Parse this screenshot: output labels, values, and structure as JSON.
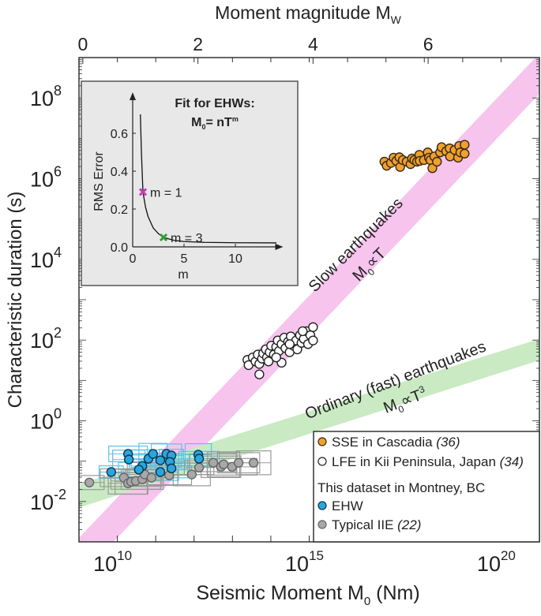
{
  "chart_data": {
    "type": "scatter",
    "title": "",
    "x_scale": "log10",
    "y_scale": "log10",
    "xlabel": {
      "main": "Seismic Moment M",
      "sub": "0",
      "tail": " (Nm)"
    },
    "ylabel": "Characteristic duration (s)",
    "top_xlabel": {
      "main": "Moment magnitude M",
      "sub": "W"
    },
    "xlim_log10": [
      9,
      21
    ],
    "ylim_log10": [
      -3,
      9
    ],
    "x_ticks": [
      {
        "value": 10,
        "base": "10",
        "exp": "10"
      },
      {
        "value": 15,
        "base": "10",
        "exp": "15"
      },
      {
        "value": 20,
        "base": "10",
        "exp": "20"
      }
    ],
    "y_ticks": [
      {
        "value": -2,
        "base": "10",
        "exp": "-2"
      },
      {
        "value": 0,
        "base": "10",
        "exp": "0"
      },
      {
        "value": 2,
        "base": "10",
        "exp": "2"
      },
      {
        "value": 4,
        "base": "10",
        "exp": "4"
      },
      {
        "value": 6,
        "base": "10",
        "exp": "6"
      },
      {
        "value": 8,
        "base": "10",
        "exp": "8"
      }
    ],
    "top_ticks": [
      {
        "value": 0,
        "label": "0"
      },
      {
        "value": 2,
        "label": "2"
      },
      {
        "value": 4,
        "label": "4"
      },
      {
        "value": 6,
        "label": "6"
      }
    ],
    "top_axis_relation": {
      "log10_M0_per_Mw": 1.5,
      "log10_M0_offset": 9.1
    },
    "bands": [
      {
        "name": "slow",
        "label": "Slow earthquakes",
        "relation": {
          "main": "M",
          "sub": "0",
          "prop": "∝",
          "T": "T",
          "exp": ""
        },
        "color": "#f7c4ee",
        "polygon_log10": [
          [
            8.9,
            -3
          ],
          [
            21,
            9.1
          ],
          [
            21,
            8.1
          ],
          [
            9.9,
            -3
          ]
        ]
      },
      {
        "name": "ordinary",
        "label": "Ordinary (fast) earthquakes",
        "relation": {
          "main": "M",
          "sub": "0",
          "prop": "∝",
          "T": "T",
          "exp": "3"
        },
        "color": "#c9eac3",
        "polygon_log10": [
          [
            9,
            -1.57
          ],
          [
            21,
            2.03
          ],
          [
            21,
            1.5
          ],
          [
            9,
            -2.15
          ]
        ]
      }
    ],
    "series": [
      {
        "name": "SSE in Cascadia",
        "ref": "(36)",
        "color": "#f0a030",
        "edge": "#3a2a10",
        "points_log10": [
          [
            16.96,
            6.42
          ],
          [
            17.02,
            6.32
          ],
          [
            17.13,
            6.39
          ],
          [
            17.2,
            6.52
          ],
          [
            17.27,
            6.44
          ],
          [
            17.35,
            6.53
          ],
          [
            17.37,
            6.29
          ],
          [
            17.44,
            6.46
          ],
          [
            17.54,
            6.42
          ],
          [
            17.64,
            6.36
          ],
          [
            17.68,
            6.5
          ],
          [
            17.74,
            6.46
          ],
          [
            17.81,
            6.42
          ],
          [
            17.87,
            6.59
          ],
          [
            17.88,
            6.44
          ],
          [
            17.99,
            6.46
          ],
          [
            18.09,
            6.65
          ],
          [
            18.12,
            6.52
          ],
          [
            18.16,
            6.46
          ],
          [
            18.21,
            6.26
          ],
          [
            18.26,
            6.55
          ],
          [
            18.33,
            6.42
          ],
          [
            18.41,
            6.65
          ],
          [
            18.45,
            6.78
          ],
          [
            18.57,
            6.68
          ],
          [
            18.66,
            6.75
          ],
          [
            18.67,
            6.55
          ],
          [
            18.79,
            6.71
          ],
          [
            18.88,
            6.52
          ],
          [
            18.91,
            6.81
          ],
          [
            18.94,
            6.65
          ],
          [
            19.05,
            6.84
          ],
          [
            19.05,
            6.62
          ]
        ]
      },
      {
        "name": "LFE in Kii Peninsula, Japan",
        "ref": "(34)",
        "color": "#ffffff",
        "edge": "#222222",
        "points_log10": [
          [
            13.39,
            1.51
          ],
          [
            13.42,
            1.38
          ],
          [
            13.53,
            1.57
          ],
          [
            13.6,
            1.47
          ],
          [
            13.66,
            1.64
          ],
          [
            13.7,
            1.41
          ],
          [
            13.77,
            1.54
          ],
          [
            13.8,
            1.67
          ],
          [
            13.87,
            1.77
          ],
          [
            13.9,
            1.57
          ],
          [
            13.97,
            1.7
          ],
          [
            14.01,
            1.86
          ],
          [
            14.08,
            1.64
          ],
          [
            14.14,
            1.83
          ],
          [
            14.18,
            1.99
          ],
          [
            14.21,
            1.73
          ],
          [
            14.28,
            1.44
          ],
          [
            14.28,
            1.9
          ],
          [
            14.35,
            2.06
          ],
          [
            14.38,
            1.8
          ],
          [
            14.45,
            1.96
          ],
          [
            14.49,
            1.7
          ],
          [
            14.52,
            2.09
          ],
          [
            14.59,
            1.86
          ],
          [
            14.66,
            1.99
          ],
          [
            14.69,
            1.77
          ],
          [
            14.76,
            2.12
          ],
          [
            14.8,
            1.93
          ],
          [
            14.86,
            2.03
          ],
          [
            14.93,
            2.22
          ],
          [
            14.97,
            1.9
          ],
          [
            15.03,
            2.12
          ],
          [
            15.1,
            2.32
          ],
          [
            15.1,
            1.99
          ],
          [
            13.7,
            1.15
          ],
          [
            13.94,
            1.47
          ],
          [
            14.14,
            1.57
          ],
          [
            14.49,
            1.9
          ],
          [
            14.83,
            2.22
          ]
        ]
      },
      {
        "name": "EHW",
        "ref": "",
        "color": "#2aa6de",
        "edge": "#0d3550",
        "box_color": "#5cc3ea",
        "box_half_log10": [
          0.45,
          0.22
        ],
        "points_log10": [
          [
            9.84,
            -1.27
          ],
          [
            10.28,
            -0.82
          ],
          [
            10.3,
            -0.96
          ],
          [
            10.65,
            -1.12
          ],
          [
            10.56,
            -1.21
          ],
          [
            10.81,
            -0.94
          ],
          [
            10.93,
            -0.82
          ],
          [
            11.12,
            -0.98
          ],
          [
            11.12,
            -1.27
          ],
          [
            11.28,
            -0.82
          ],
          [
            11.41,
            -0.86
          ],
          [
            11.37,
            -1.02
          ],
          [
            11.41,
            -1.18
          ],
          [
            12.11,
            -0.84
          ],
          [
            12.13,
            -0.94
          ]
        ]
      },
      {
        "name": "Typical IIE",
        "ref": "(22)",
        "color": "#a8a8a8",
        "edge": "#666666",
        "box_color": "#9a9a9a",
        "box_half_log10": [
          0.55,
          0.25
        ],
        "points_log10": [
          [
            9.27,
            -1.53
          ],
          [
            10.17,
            -1.41
          ],
          [
            10.28,
            -1.55
          ],
          [
            10.36,
            -1.51
          ],
          [
            10.48,
            -1.49
          ],
          [
            10.65,
            -1.45
          ],
          [
            10.71,
            -1.33
          ],
          [
            10.89,
            -1.41
          ],
          [
            11.35,
            -1.35
          ],
          [
            11.94,
            -1.33
          ],
          [
            12.13,
            -1.16
          ],
          [
            12.5,
            -1.04
          ],
          [
            12.7,
            -1.14
          ],
          [
            12.77,
            -1.08
          ],
          [
            12.99,
            -1.14
          ],
          [
            13.16,
            -1.04
          ],
          [
            13.55,
            -1.04
          ]
        ]
      }
    ],
    "legend": {
      "placement": "bottom-right",
      "items": [
        {
          "label": "SSE in Cascadia ",
          "ref": "(36)",
          "series": 0
        },
        {
          "label": "LFE in Kii Peninsula, Japan ",
          "ref": "(34)",
          "series": 1
        },
        {
          "heading": "This dataset in Montney, BC"
        },
        {
          "label": "EHW",
          "ref": "",
          "series": 2
        },
        {
          "label": "Typical IIE ",
          "ref": "(22)",
          "series": 3
        }
      ]
    },
    "inset": {
      "type": "line",
      "title": "Fit for EHWs:",
      "formula": {
        "main": "M",
        "sub": "0",
        "rest": "= nT",
        "exp": "m"
      },
      "xlabel": "m",
      "ylabel": "RMS Error",
      "xlim": [
        0,
        14.5
      ],
      "ylim": [
        0,
        0.8
      ],
      "x_ticks": [
        {
          "value": 0,
          "label": "0"
        },
        {
          "value": 5,
          "label": "5"
        },
        {
          "value": 10,
          "label": "10"
        }
      ],
      "y_ticks": [
        {
          "value": 0,
          "label": "0.0"
        },
        {
          "value": 0.2,
          "label": "0.2"
        },
        {
          "value": 0.4,
          "label": "0.4"
        },
        {
          "value": 0.6,
          "label": "0.6"
        }
      ],
      "curve": {
        "m": [
          0.75,
          0.85,
          1,
          1.25,
          1.5,
          2,
          2.5,
          3,
          4,
          5,
          7,
          10,
          14
        ],
        "rms": [
          0.7,
          0.5,
          0.29,
          0.21,
          0.16,
          0.1,
          0.07,
          0.05,
          0.035,
          0.028,
          0.024,
          0.022,
          0.021
        ]
      },
      "markers": [
        {
          "m": 1,
          "rms": 0.29,
          "label": "m = 1",
          "color": "#c040b0"
        },
        {
          "m": 3,
          "rms": 0.05,
          "label": "m = 3",
          "color": "#2f9a3a"
        }
      ]
    }
  }
}
